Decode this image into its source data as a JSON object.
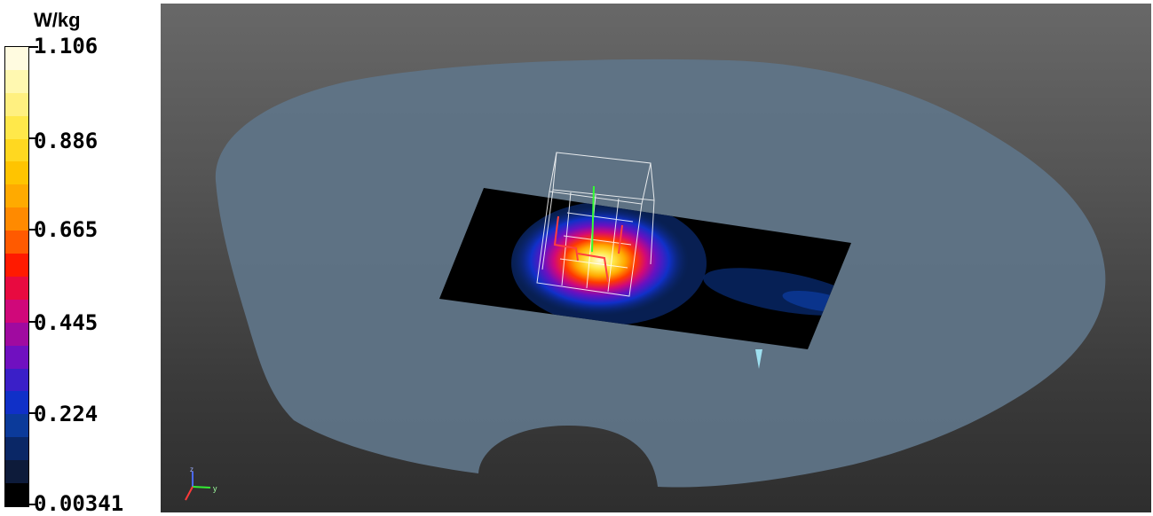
{
  "legend": {
    "unit": "W/kg",
    "max_label": "1.106",
    "tick_labels": [
      "0.886",
      "0.665",
      "0.445",
      "0.224"
    ],
    "min_label": "0.00341",
    "colors_bottom_to_top": [
      "#000000",
      "#0d1b3a",
      "#0a2766",
      "#0b3a9a",
      "#1030c8",
      "#3a1fc8",
      "#7010c0",
      "#a00aa0",
      "#d0087a",
      "#e80a40",
      "#ff1a00",
      "#ff5a00",
      "#ff8a00",
      "#ffaa00",
      "#ffc400",
      "#ffd820",
      "#ffe84a",
      "#fff080",
      "#fff8b0",
      "#fffbe0"
    ]
  },
  "viewport": {
    "background_colors": [
      "#686868",
      "#2e2e2e"
    ],
    "phantom_color": "#5f7487",
    "axes_labels": [
      "z",
      "y"
    ]
  }
}
